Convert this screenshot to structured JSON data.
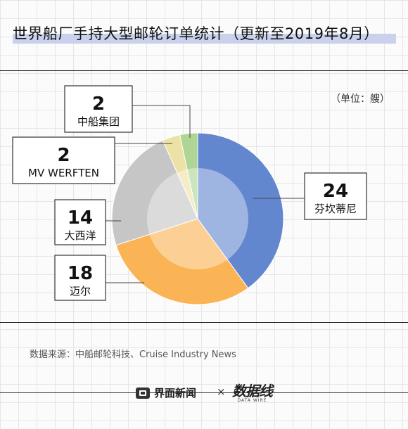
{
  "title": "世界船厂手持大型邮轮订单统计（更新至2019年8月）",
  "unit": "（单位：艘）",
  "source": "数据来源：中船邮轮科技、Cruise Industry News",
  "footer": {
    "logo1": "界面新闻",
    "times": "×",
    "logo2": "数据线",
    "logo2_sub": "DATA WIRE"
  },
  "colors": {
    "fincantieri": "#6387cf",
    "meyer": "#fbb455",
    "chantiers": "#c6c6c6",
    "mv": "#ece2a6",
    "cssc": "#aed594"
  },
  "chart_data": {
    "type": "pie",
    "title": "世界船厂手持大型邮轮订单统计（更新至2019年8月）",
    "unit": "艘",
    "slices": [
      {
        "label": "芬坎蒂尼",
        "value": 24,
        "color_key": "fincantieri"
      },
      {
        "label": "迈尔",
        "value": 18,
        "color_key": "meyer"
      },
      {
        "label": "大西洋",
        "value": 14,
        "color_key": "chantiers"
      },
      {
        "label": "MV WERFTEN",
        "value": 2,
        "color_key": "mv"
      },
      {
        "label": "中船集团",
        "value": 2,
        "color_key": "cssc"
      }
    ]
  }
}
